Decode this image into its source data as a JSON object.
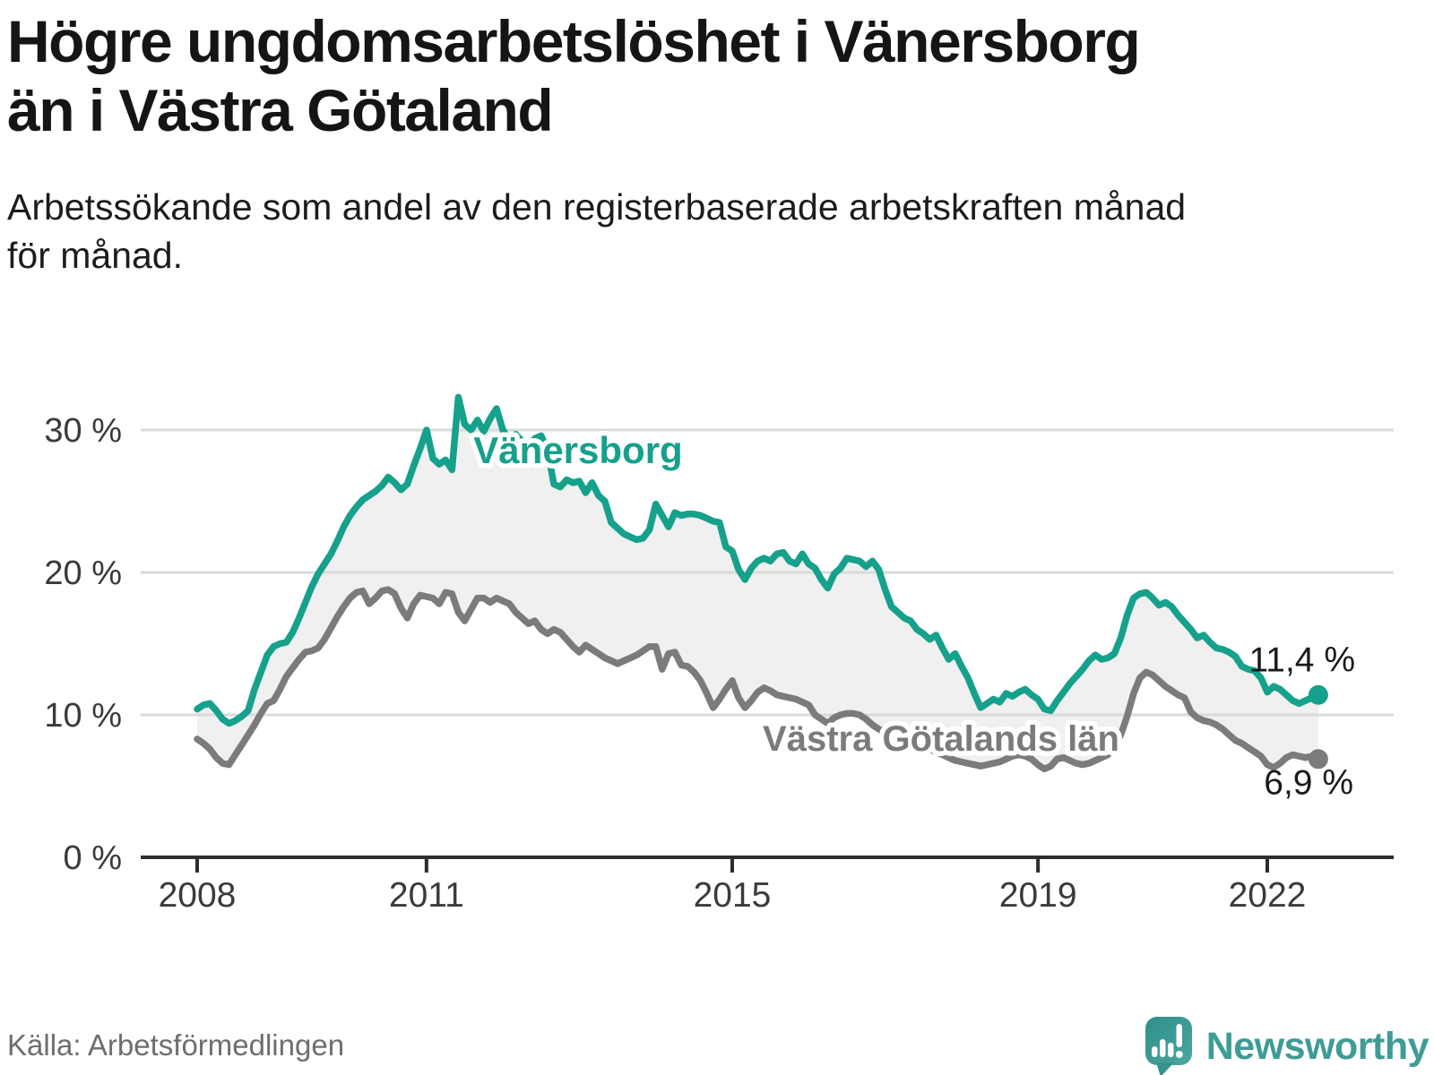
{
  "header": {
    "title_line1": "Högre ungdomsarbetslöshet i Vänersborg",
    "title_line2": "än i Västra Götaland",
    "subtitle_lines": [
      "Arbetssökande som andel av den registerbaserade arbetskraften månad",
      "för månad."
    ]
  },
  "footer": {
    "source": "Källa: Arbetsförmedlingen",
    "logo_text": "Newsworthy"
  },
  "colors": {
    "vanersborg": "#15A18C",
    "county": "#7B7B7B",
    "fill_between": "#F0F0F0",
    "gridline": "#DADADA",
    "axis": "#2D2D2D",
    "tick_label": "#3A3A3A",
    "end_label": "#1A1A1A",
    "halo": "#FFFFFF",
    "logo_teal": "#3E9C95"
  },
  "chart_data": {
    "type": "line",
    "title": "Högre ungdomsarbetslöshet i Vänersborg än i Västra Götaland",
    "subtitle": "Arbetssökande som andel av den registerbaserade arbetskraften månad för månad.",
    "frequency": "monthly",
    "x_start": "2008-01",
    "x_end": "2022-09",
    "x_ticks": [
      2008,
      2011,
      2015,
      2019,
      2022
    ],
    "y_ticks": [
      {
        "value": 0,
        "label": "0 %"
      },
      {
        "value": 10,
        "label": "10 %"
      },
      {
        "value": 20,
        "label": "20 %"
      },
      {
        "value": 30,
        "label": "30 %"
      }
    ],
    "ylim": [
      0,
      34
    ],
    "grid": "horizontal",
    "legend_position": "inline-labels",
    "series": [
      {
        "name": "Vänersborg",
        "color": "#15A18C",
        "end_value": 11.4,
        "end_label": "11,4 %",
        "values": [
          10.4,
          10.7,
          10.8,
          10.3,
          9.7,
          9.4,
          9.6,
          9.9,
          10.3,
          11.8,
          13.0,
          14.2,
          14.8,
          15.0,
          15.1,
          15.8,
          16.8,
          17.9,
          19.0,
          19.9,
          20.6,
          21.3,
          22.2,
          23.2,
          24.0,
          24.6,
          25.1,
          25.4,
          25.7,
          26.1,
          26.7,
          26.3,
          25.8,
          26.2,
          27.5,
          28.7,
          30.0,
          28.0,
          27.6,
          27.9,
          27.2,
          32.3,
          30.4,
          30.0,
          30.7,
          29.9,
          30.8,
          31.5,
          30.0,
          29.3,
          29.7,
          29.2,
          28.8,
          29.4,
          29.6,
          28.6,
          26.2,
          26.0,
          26.5,
          26.3,
          26.4,
          25.6,
          26.3,
          25.4,
          25.0,
          23.5,
          23.1,
          22.7,
          22.5,
          22.3,
          22.4,
          23.0,
          24.8,
          24.0,
          23.2,
          24.2,
          24.0,
          24.1,
          24.1,
          24.0,
          23.8,
          23.6,
          23.5,
          21.8,
          21.5,
          20.2,
          19.5,
          20.3,
          20.8,
          21.0,
          20.8,
          21.3,
          21.4,
          20.8,
          20.6,
          21.3,
          20.6,
          20.3,
          19.5,
          18.9,
          19.9,
          20.3,
          21.0,
          20.9,
          20.8,
          20.4,
          20.8,
          20.2,
          18.8,
          17.6,
          17.2,
          16.8,
          16.6,
          16.0,
          15.7,
          15.3,
          15.6,
          14.7,
          13.9,
          14.3,
          13.4,
          12.6,
          11.5,
          10.5,
          10.8,
          11.1,
          10.9,
          11.5,
          11.3,
          11.6,
          11.8,
          11.4,
          11.1,
          10.4,
          10.3,
          11.0,
          11.6,
          12.2,
          12.7,
          13.2,
          13.8,
          14.2,
          13.9,
          14.0,
          14.3,
          15.4,
          17.0,
          18.2,
          18.5,
          18.6,
          18.2,
          17.7,
          17.9,
          17.6,
          17.0,
          16.5,
          16.0,
          15.4,
          15.6,
          15.1,
          14.7,
          14.6,
          14.4,
          14.1,
          13.4,
          13.2,
          13.1,
          12.6,
          11.6,
          12.0,
          11.8,
          11.4,
          11.0,
          10.8,
          11.0,
          11.2,
          11.4
        ]
      },
      {
        "name": "Västra Götalands län",
        "color": "#7B7B7B",
        "end_value": 6.9,
        "end_label": "6,9 %",
        "values": [
          8.3,
          8.0,
          7.6,
          7.0,
          6.6,
          6.5,
          7.2,
          7.9,
          8.6,
          9.3,
          10.1,
          10.8,
          11.0,
          11.8,
          12.7,
          13.3,
          13.9,
          14.4,
          14.5,
          14.7,
          15.3,
          16.1,
          16.9,
          17.6,
          18.2,
          18.6,
          18.7,
          17.8,
          18.2,
          18.7,
          18.8,
          18.5,
          17.5,
          16.8,
          17.8,
          18.4,
          18.3,
          18.2,
          17.8,
          18.6,
          18.5,
          17.2,
          16.6,
          17.4,
          18.2,
          18.2,
          17.9,
          18.2,
          18.0,
          17.8,
          17.2,
          16.8,
          16.4,
          16.6,
          16.0,
          15.7,
          16.0,
          15.8,
          15.3,
          14.8,
          14.4,
          14.9,
          14.6,
          14.3,
          14.0,
          13.8,
          13.6,
          13.8,
          14.0,
          14.2,
          14.5,
          14.8,
          14.8,
          13.2,
          14.3,
          14.4,
          13.5,
          13.4,
          13.0,
          12.4,
          11.5,
          10.5,
          11.1,
          11.8,
          12.4,
          11.2,
          10.5,
          11.0,
          11.6,
          11.9,
          11.7,
          11.4,
          11.3,
          11.2,
          11.1,
          10.9,
          10.7,
          10.0,
          9.7,
          9.4,
          9.8,
          10.0,
          10.1,
          10.1,
          10.0,
          9.7,
          9.3,
          9.0,
          8.8,
          8.6,
          8.5,
          8.3,
          8.2,
          8.0,
          7.8,
          7.6,
          7.4,
          7.2,
          7.0,
          6.8,
          6.7,
          6.6,
          6.5,
          6.4,
          6.5,
          6.6,
          6.7,
          6.9,
          7.1,
          7.2,
          7.1,
          6.9,
          6.5,
          6.2,
          6.4,
          6.9,
          7.0,
          6.8,
          6.6,
          6.5,
          6.6,
          6.8,
          7.0,
          7.2,
          7.8,
          8.6,
          9.9,
          11.5,
          12.6,
          13.0,
          12.8,
          12.4,
          12.0,
          11.7,
          11.4,
          11.2,
          10.2,
          9.8,
          9.6,
          9.5,
          9.3,
          9.0,
          8.6,
          8.2,
          8.0,
          7.7,
          7.4,
          7.1,
          6.5,
          6.3,
          6.6,
          7.0,
          7.2,
          7.1,
          7.0,
          7.1,
          6.9
        ]
      }
    ]
  }
}
